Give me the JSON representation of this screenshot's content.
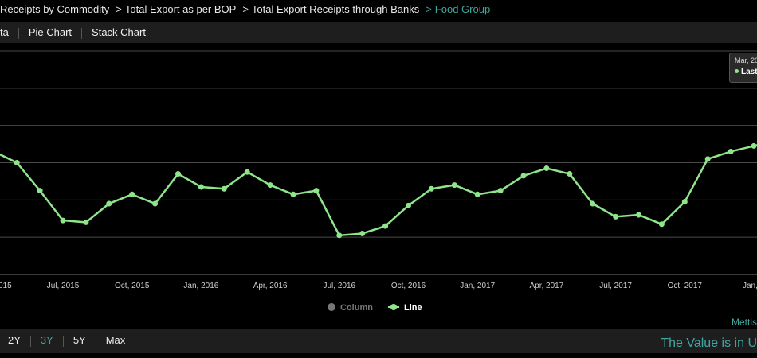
{
  "breadcrumb": {
    "items": [
      "Receipts by Commodity",
      "Total Export as per BOP",
      "Total Export Receipts through Banks"
    ],
    "current": "Food Group",
    "separator": ">"
  },
  "toolbar": {
    "tabs": [
      "ta",
      "Pie Chart",
      "Stack Chart"
    ]
  },
  "legend": {
    "column_label": "Column",
    "line_label": "Line"
  },
  "credit": "Mettis",
  "range": {
    "buttons": [
      "2Y",
      "3Y",
      "5Y",
      "Max"
    ],
    "active": "3Y",
    "note": "The Value is in U"
  },
  "tooltip": {
    "date": "Mar, 20",
    "series": "Last"
  },
  "colors": {
    "line": "#8fe58a",
    "accent": "#3fa6a0",
    "grid": "#4a4a4a"
  },
  "chart_data": {
    "type": "line",
    "x_tick_labels": [
      "015",
      "Jul, 2015",
      "Oct, 2015",
      "Jan, 2016",
      "Apr, 2016",
      "Jul, 2016",
      "Oct, 2016",
      "Jan, 2017",
      "Apr, 2017",
      "Jul, 2017",
      "Oct, 2017",
      "Jan, 2"
    ],
    "ylim": [
      0,
      60
    ],
    "gridlines": [
      10,
      20,
      30,
      40,
      50,
      60
    ],
    "grid": true,
    "legend_position": "bottom-center",
    "series": [
      {
        "name": "Line",
        "x": [
          "2015-04",
          "2015-05",
          "2015-06",
          "2015-07",
          "2015-08",
          "2015-09",
          "2015-10",
          "2015-11",
          "2015-12",
          "2016-01",
          "2016-02",
          "2016-03",
          "2016-04",
          "2016-05",
          "2016-06",
          "2016-07",
          "2016-08",
          "2016-09",
          "2016-10",
          "2016-11",
          "2016-12",
          "2017-01",
          "2017-02",
          "2017-03",
          "2017-04",
          "2017-05",
          "2017-06",
          "2017-07",
          "2017-08",
          "2017-09",
          "2017-10",
          "2017-11",
          "2017-12",
          "2018-01",
          "2018-02"
        ],
        "values": [
          33,
          30,
          22.5,
          14.5,
          14,
          19,
          21.5,
          19,
          27,
          23.5,
          23,
          27.5,
          24,
          21.5,
          22.5,
          10.5,
          11,
          13,
          18.5,
          23,
          24,
          21.5,
          22.5,
          26.5,
          28.5,
          27,
          19,
          15.5,
          16,
          13.5,
          19.5,
          31,
          33,
          34.5,
          36
        ]
      }
    ]
  }
}
